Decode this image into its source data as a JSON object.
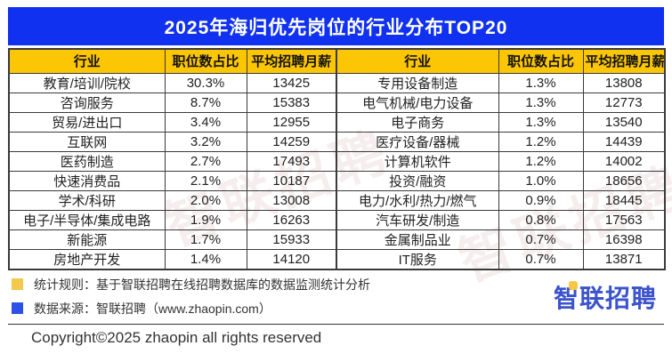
{
  "chart_data": {
    "type": "table",
    "title": "2025年海归优先岗位的行业分布TOP20",
    "columns": [
      "行业",
      "职位数占比",
      "平均招聘月薪"
    ],
    "rows": [
      [
        "教育/培训/院校",
        "30.3%",
        13425
      ],
      [
        "咨询服务",
        "8.7%",
        15383
      ],
      [
        "贸易/进出口",
        "3.4%",
        12955
      ],
      [
        "互联网",
        "3.2%",
        14259
      ],
      [
        "医药制造",
        "2.7%",
        17493
      ],
      [
        "快速消费品",
        "2.1%",
        10187
      ],
      [
        "学术/科研",
        "2.0%",
        13008
      ],
      [
        "电子/半导体/集成电路",
        "1.9%",
        16263
      ],
      [
        "新能源",
        "1.7%",
        15933
      ],
      [
        "房地产开发",
        "1.4%",
        14120
      ],
      [
        "专用设备制造",
        "1.3%",
        13808
      ],
      [
        "电气机械/电力设备",
        "1.3%",
        12773
      ],
      [
        "电子商务",
        "1.3%",
        13540
      ],
      [
        "医疗设备/器械",
        "1.2%",
        14439
      ],
      [
        "计算机软件",
        "1.2%",
        14002
      ],
      [
        "投资/融资",
        "1.0%",
        18656
      ],
      [
        "电力/水利/热力/燃气",
        "0.9%",
        18445
      ],
      [
        "汽车研发/制造",
        "0.8%",
        17563
      ],
      [
        "金属制品业",
        "0.7%",
        16398
      ],
      [
        "IT服务",
        "0.7%",
        13871
      ]
    ],
    "layout": "two-column split: rows 1-10 left half, rows 11-20 right half"
  },
  "watermark": "智联招聘",
  "footer": {
    "legend": [
      {
        "swatch_color": "#f2c94c",
        "text": "统计规则：基于智联招聘在线招聘数据库的数据监测统计分析"
      },
      {
        "swatch_color": "#2d50e6",
        "text": "数据来源：智联招聘（www.zhaopin.com）"
      }
    ],
    "logo_text": "智联招聘",
    "copyright": "Copyright©2025 zhaopin all rights reserved"
  },
  "colors": {
    "title_bg": "#1031f0",
    "title_text": "#ffffff",
    "header_bg": "#fcc605",
    "border": "#3a3a3a",
    "logo_blue": "#3b53cc",
    "logo_accent_yellow": "#f7c843",
    "legend_yellow": "#f2c94c",
    "legend_blue": "#2d50e6"
  }
}
